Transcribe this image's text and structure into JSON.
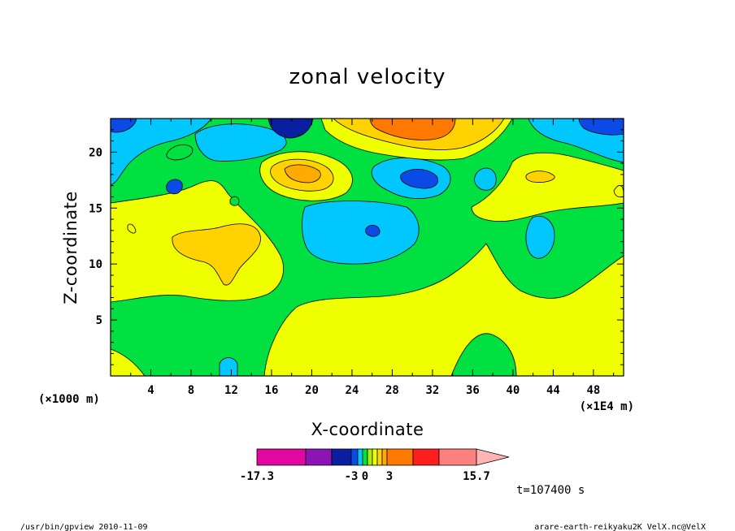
{
  "chart_data": {
    "type": "heatmap",
    "title": "zonal velocity",
    "xlabel": "X-coordinate",
    "ylabel": "Z-coordinate",
    "x_unit": "(×1000 m)",
    "x_scale_note": "(×1E4 m)",
    "x_ticks": [
      "4",
      "8",
      "12",
      "16",
      "20",
      "24",
      "28",
      "32",
      "36",
      "40",
      "44",
      "48"
    ],
    "y_ticks": [
      "5",
      "10",
      "15",
      "20"
    ],
    "xlim": [
      0,
      51
    ],
    "ylim": [
      0,
      23
    ],
    "colorbar": {
      "levels_shown": [
        "-17.3",
        "-3",
        "0",
        "3",
        "15.7"
      ],
      "colors": [
        "#e0089f",
        "#8c14b4",
        "#0a1ea0",
        "#0a4be6",
        "#00c8ff",
        "#00e040",
        "#aaf000",
        "#f0ff00",
        "#ffd200",
        "#ffaa00",
        "#ff7800",
        "#ff1e1e",
        "#ff8080",
        "#ffb4b4"
      ]
    },
    "time_label": "t=107400 s",
    "footer_left": "/usr/bin/gpview  2010-11-09",
    "footer_right": "arare-earth-reikyaku2K_VelX.nc@VelX"
  }
}
